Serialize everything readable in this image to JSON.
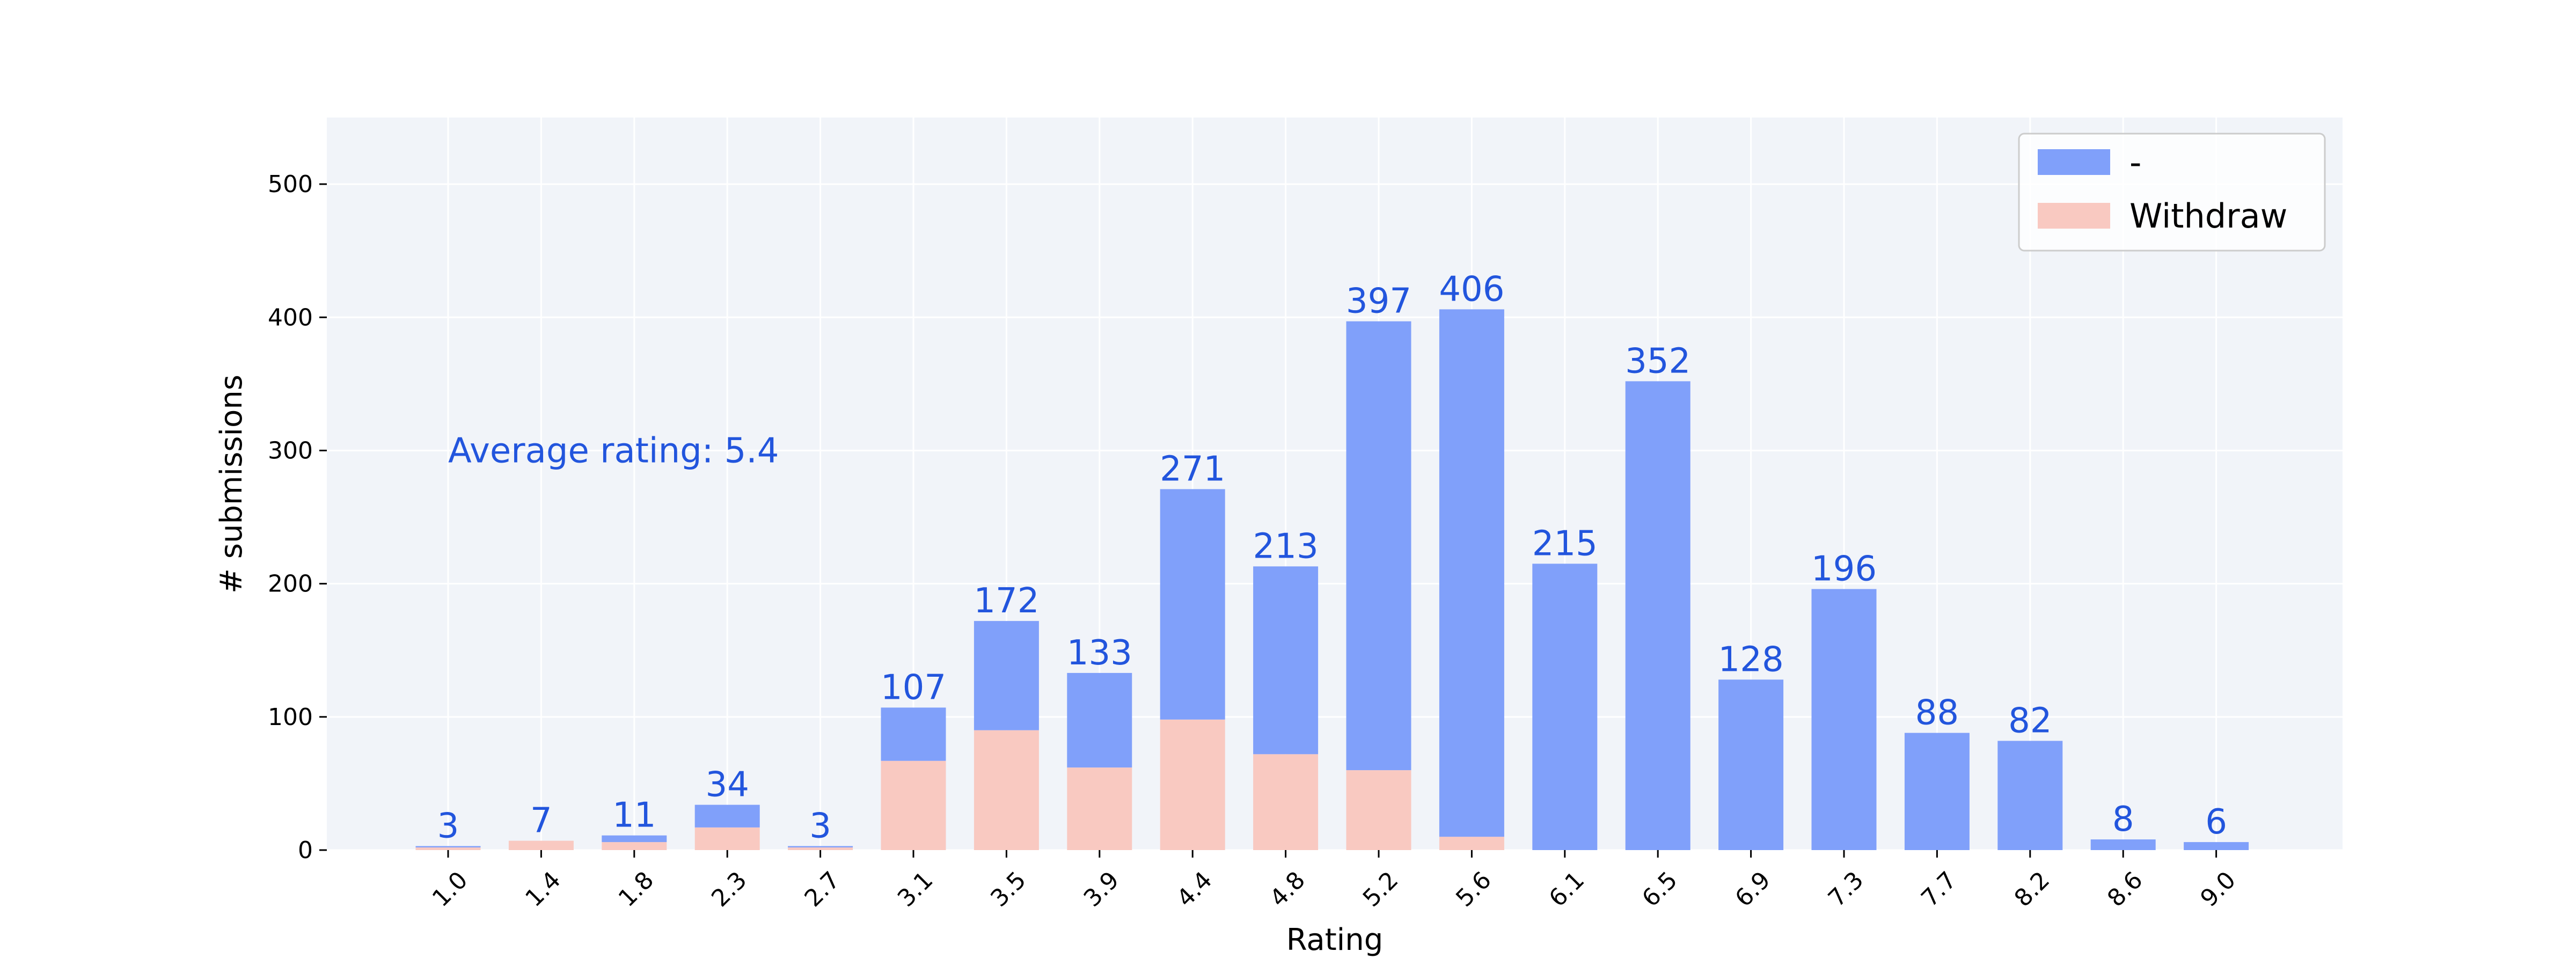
{
  "chart_data": {
    "type": "bar",
    "stacked": true,
    "xlabel": "Rating",
    "ylabel": "# submissions",
    "ylim": [
      0,
      550
    ],
    "yticks": [
      0,
      100,
      200,
      300,
      400,
      500
    ],
    "grid": true,
    "categories": [
      "1.0",
      "1.4",
      "1.8",
      "2.3",
      "2.7",
      "3.1",
      "3.5",
      "3.9",
      "4.4",
      "4.8",
      "5.2",
      "5.6",
      "6.1",
      "6.5",
      "6.9",
      "7.3",
      "7.7",
      "8.2",
      "8.6",
      "9.0"
    ],
    "series": [
      {
        "name": "Withdraw",
        "color": "#f9c9c1",
        "values": [
          2,
          7,
          6,
          17,
          2,
          67,
          90,
          62,
          98,
          72,
          60,
          10,
          0,
          0,
          0,
          0,
          0,
          0,
          0,
          0
        ]
      },
      {
        "name": "-",
        "color": "#80a0fa",
        "values": [
          1,
          0,
          5,
          17,
          1,
          40,
          82,
          71,
          173,
          141,
          337,
          396,
          215,
          352,
          128,
          196,
          88,
          82,
          8,
          6
        ]
      }
    ],
    "totals": [
      3,
      7,
      11,
      34,
      3,
      107,
      172,
      133,
      271,
      213,
      397,
      406,
      215,
      352,
      128,
      196,
      88,
      82,
      8,
      6
    ],
    "total_label_color": "#2255dd",
    "legend": {
      "placement": "top-right",
      "order": [
        "-",
        "Withdraw"
      ]
    },
    "annotation": {
      "text": "Average rating: 5.4",
      "x_category": "1.0",
      "y": 300,
      "color": "#2255dd"
    },
    "colors": {
      "plot_bg": "#f1f4f9",
      "grid": "#ffffff"
    }
  }
}
